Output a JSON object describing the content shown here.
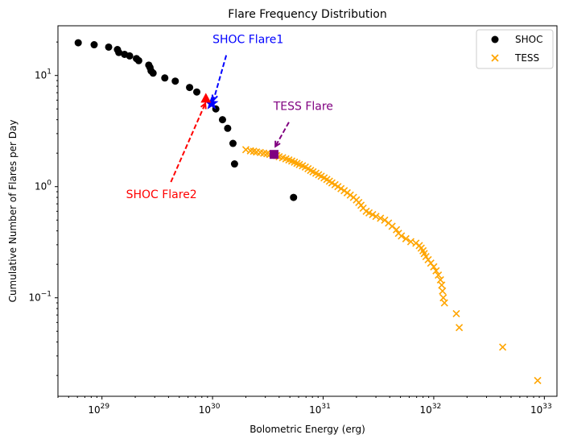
{
  "chart_data": {
    "type": "scatter",
    "title": "Flare Frequency Distribution",
    "xlabel": "Bolometric Energy (erg)",
    "ylabel": "Cumulative Number of Flares per Day",
    "xscale": "log",
    "yscale": "log",
    "xlim": [
      4e+28,
      1.3e+33
    ],
    "ylim": [
      0.013,
      28
    ],
    "xticks": [
      {
        "value": 1e+29,
        "base": "10",
        "exp": "29"
      },
      {
        "value": 1e+30,
        "base": "10",
        "exp": "30"
      },
      {
        "value": 1e+31,
        "base": "10",
        "exp": "31"
      },
      {
        "value": 1e+32,
        "base": "10",
        "exp": "32"
      },
      {
        "value": 1e+33,
        "base": "10",
        "exp": "33"
      }
    ],
    "yticks": [
      {
        "value": 0.1,
        "base": "10",
        "exp": "−1"
      },
      {
        "value": 1,
        "base": "10",
        "exp": "0"
      },
      {
        "value": 10,
        "base": "10",
        "exp": "1"
      }
    ],
    "legend": {
      "position": "top-right",
      "entries": [
        "SHOC",
        "TESS"
      ]
    },
    "grid": false,
    "colors": {
      "shoc": "#000000",
      "tess": "#ffa500",
      "flare1": "#0000ff",
      "flare2": "#ff0000",
      "tess_flare": "#800080"
    },
    "series": [
      {
        "name": "SHOC",
        "marker": "circle",
        "color": "#000000",
        "points": [
          [
            6.1e+28,
            19.7
          ],
          [
            8.5e+28,
            18.9
          ],
          [
            1.15e+29,
            18.0
          ],
          [
            1.38e+29,
            17.1
          ],
          [
            1.42e+29,
            16.1
          ],
          [
            1.6e+29,
            15.5
          ],
          [
            1.78e+29,
            15.0
          ],
          [
            2.05e+29,
            14.2
          ],
          [
            2.15e+29,
            13.6
          ],
          [
            2.65e+29,
            12.4
          ],
          [
            2.72e+29,
            11.8
          ],
          [
            2.78e+29,
            11.0
          ],
          [
            2.9e+29,
            10.5
          ],
          [
            3.7e+29,
            9.5
          ],
          [
            4.6e+29,
            8.9
          ],
          [
            6.2e+29,
            7.8
          ],
          [
            7.2e+29,
            7.1
          ],
          [
            1.07e+30,
            5.0
          ],
          [
            1.23e+30,
            4.0
          ],
          [
            1.37e+30,
            3.35
          ],
          [
            1.53e+30,
            2.45
          ],
          [
            1.58e+30,
            1.6
          ],
          [
            5.4e+30,
            0.8
          ]
        ]
      },
      {
        "name": "TESS",
        "marker": "x",
        "color": "#ffa500",
        "points": [
          [
            2e+30,
            2.15
          ],
          [
            2.2e+30,
            2.1
          ],
          [
            2.35e+30,
            2.08
          ],
          [
            2.5e+30,
            2.05
          ],
          [
            2.7e+30,
            2.03
          ],
          [
            2.9e+30,
            2.0
          ],
          [
            3.1e+30,
            1.98
          ],
          [
            3.3e+30,
            1.95
          ],
          [
            3.55e+30,
            1.93
          ],
          [
            3.8e+30,
            1.9
          ],
          [
            4e+30,
            1.86
          ],
          [
            4.3e+30,
            1.82
          ],
          [
            4.6e+30,
            1.78
          ],
          [
            4.9e+30,
            1.74
          ],
          [
            5.2e+30,
            1.7
          ],
          [
            5.5e+30,
            1.66
          ],
          [
            5.8e+30,
            1.62
          ],
          [
            6.1e+30,
            1.58
          ],
          [
            6.5e+30,
            1.54
          ],
          [
            6.9e+30,
            1.5
          ],
          [
            7.3e+30,
            1.45
          ],
          [
            7.7e+30,
            1.4
          ],
          [
            8.1e+30,
            1.36
          ],
          [
            8.6e+30,
            1.32
          ],
          [
            9.1e+30,
            1.28
          ],
          [
            9.6e+30,
            1.24
          ],
          [
            1.02e+31,
            1.2
          ],
          [
            1.08e+31,
            1.16
          ],
          [
            1.14e+31,
            1.12
          ],
          [
            1.2e+31,
            1.08
          ],
          [
            1.28e+31,
            1.04
          ],
          [
            1.36e+31,
            1.0
          ],
          [
            1.45e+31,
            0.96
          ],
          [
            1.55e+31,
            0.92
          ],
          [
            1.65e+31,
            0.88
          ],
          [
            1.76e+31,
            0.84
          ],
          [
            1.88e+31,
            0.8
          ],
          [
            2e+31,
            0.76
          ],
          [
            2.1e+31,
            0.72
          ],
          [
            2.2e+31,
            0.68
          ],
          [
            2.3e+31,
            0.64
          ],
          [
            2.45e+31,
            0.6
          ],
          [
            2.6e+31,
            0.58
          ],
          [
            2.8e+31,
            0.56
          ],
          [
            3e+31,
            0.54
          ],
          [
            3.3e+31,
            0.52
          ],
          [
            3.6e+31,
            0.5
          ],
          [
            3.9e+31,
            0.47
          ],
          [
            4.2e+31,
            0.44
          ],
          [
            4.6e+31,
            0.41
          ],
          [
            4.8e+31,
            0.38
          ],
          [
            5.1e+31,
            0.36
          ],
          [
            5.6e+31,
            0.34
          ],
          [
            6.2e+31,
            0.32
          ],
          [
            6.9e+31,
            0.31
          ],
          [
            7.4e+31,
            0.295
          ],
          [
            7.7e+31,
            0.28
          ],
          [
            8e+31,
            0.265
          ],
          [
            8.2e+31,
            0.25
          ],
          [
            8.5e+31,
            0.235
          ],
          [
            8.9e+31,
            0.22
          ],
          [
            9.4e+31,
            0.205
          ],
          [
            1e+32,
            0.19
          ],
          [
            1.05e+32,
            0.175
          ],
          [
            1.1e+32,
            0.16
          ],
          [
            1.15e+32,
            0.145
          ],
          [
            1.18e+32,
            0.13
          ],
          [
            1.2e+32,
            0.115
          ],
          [
            1.22e+32,
            0.1
          ],
          [
            1.25e+32,
            0.09
          ],
          [
            1.6e+32,
            0.072
          ],
          [
            1.7e+32,
            0.054
          ],
          [
            4.2e+32,
            0.036
          ],
          [
            8.7e+32,
            0.018
          ]
        ]
      }
    ],
    "highlights": [
      {
        "label": "SHOC Flare1",
        "marker": "star",
        "color": "#0000ff",
        "x": 9.8e+29,
        "y": 5.6,
        "text_x": 1e+30,
        "text_y": 19.5,
        "arrow_from": [
          1.33e+30,
          15.2
        ],
        "arrow_to": [
          1.02e+30,
          6.0
        ]
      },
      {
        "label": "SHOC Flare2",
        "marker": "triangle",
        "color": "#ff0000",
        "x": 8.7e+29,
        "y": 6.2,
        "text_x": 1.65e+29,
        "text_y": 0.79,
        "arrow_from": [
          4.2e+29,
          1.1
        ],
        "arrow_to": [
          8.6e+29,
          5.6
        ]
      },
      {
        "label": "TESS Flare",
        "marker": "square",
        "color": "#800080",
        "x": 3.6e+30,
        "y": 1.95,
        "text_x": 3.55e+30,
        "text_y": 4.9,
        "arrow_from": [
          4.9e+30,
          3.8
        ],
        "arrow_to": [
          3.7e+30,
          2.3
        ]
      }
    ]
  }
}
